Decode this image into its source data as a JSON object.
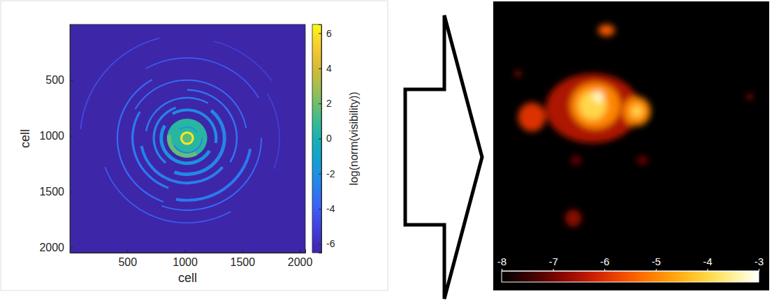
{
  "chart_data": [
    {
      "type": "heatmap",
      "x_label": "cell",
      "y_label": "cell",
      "xlim": [
        0,
        2048
      ],
      "ylim": [
        0,
        2048
      ],
      "xticks": [
        500,
        1000,
        1500,
        2000
      ],
      "yticks": [
        500,
        1000,
        1500,
        2000
      ],
      "center": [
        1020,
        1020
      ],
      "background": -6.5,
      "rings": [
        {
          "r_in": 925,
          "r_out": 935,
          "from": 275,
          "to": 345,
          "value": -4.5
        },
        {
          "r_in": 895,
          "r_out": 903,
          "from": 15,
          "to": 55,
          "value": -4.8
        },
        {
          "r_in": 800,
          "r_out": 808,
          "from": 60,
          "to": 110,
          "value": -4.8
        },
        {
          "r_in": 755,
          "r_out": 765,
          "from": 150,
          "to": 250,
          "value": -4
        },
        {
          "r_in": 715,
          "r_out": 725,
          "from": -30,
          "to": 60,
          "value": -4
        },
        {
          "r_in": 640,
          "r_out": 652,
          "from": 90,
          "to": 200,
          "value": -3.6
        },
        {
          "r_in": 600,
          "r_out": 614,
          "from": 200,
          "to": 330,
          "value": -3.6
        },
        {
          "r_in": 545,
          "r_out": 570,
          "from": 100,
          "to": 190,
          "value": -3
        },
        {
          "r_in": 515,
          "r_out": 527,
          "from": -60,
          "to": 80,
          "value": -3.5
        },
        {
          "r_in": 465,
          "r_out": 485,
          "from": 200,
          "to": 300,
          "value": -3
        },
        {
          "r_in": 425,
          "r_out": 440,
          "from": 0,
          "to": 120,
          "value": -3.2
        },
        {
          "r_in": 390,
          "r_out": 415,
          "from": 130,
          "to": 260,
          "value": -2.8
        },
        {
          "r_in": 355,
          "r_out": 370,
          "from": -80,
          "to": 30,
          "value": -3
        },
        {
          "r_in": 310,
          "r_out": 340,
          "from": 40,
          "to": 200,
          "value": -2.5
        },
        {
          "r_in": 280,
          "r_out": 300,
          "from": 220,
          "to": 340,
          "value": -2.6
        },
        {
          "r_in": 240,
          "r_out": 265,
          "from": -30,
          "to": 100,
          "value": -2.2
        },
        {
          "r_in": 210,
          "r_out": 240,
          "from": 120,
          "to": 300,
          "value": -2
        },
        {
          "r_in": 0,
          "r_out": 175,
          "from": 0,
          "to": 360,
          "value": 0.5
        },
        {
          "r_in": 140,
          "r_out": 175,
          "from": 150,
          "to": 280,
          "value": 1.8
        },
        {
          "r_in": 125,
          "r_out": 135,
          "from": 90,
          "to": 240,
          "value": -3
        },
        {
          "r_in": 95,
          "r_out": 105,
          "from": -40,
          "to": 60,
          "value": -2
        },
        {
          "r_in": 40,
          "r_out": 60,
          "from": 0,
          "to": 360,
          "value": 6
        },
        {
          "r_in": 0,
          "r_out": 40,
          "from": 0,
          "to": 360,
          "value": 1.5
        }
      ],
      "colorbar": {
        "label": "log(norm(visibility))",
        "range": [
          -6.5,
          6.5
        ],
        "ticks": [
          -6,
          -4,
          -2,
          0,
          2,
          4,
          6
        ]
      }
    },
    {
      "type": "image",
      "tick_labels": false,
      "xlim": [
        0,
        1
      ],
      "ylim": [
        0,
        1
      ],
      "background": -8,
      "blobs": [
        {
          "x": 0.36,
          "y": 0.37,
          "rx": 0.17,
          "ry": 0.12,
          "value": -6.5
        },
        {
          "x": 0.37,
          "y": 0.36,
          "rx": 0.09,
          "ry": 0.08,
          "value": -5
        },
        {
          "x": 0.36,
          "y": 0.36,
          "rx": 0.05,
          "ry": 0.05,
          "value": -4
        },
        {
          "x": 0.38,
          "y": 0.33,
          "rx": 0.02,
          "ry": 0.02,
          "value": -3.3
        },
        {
          "x": 0.52,
          "y": 0.38,
          "rx": 0.05,
          "ry": 0.05,
          "value": -5
        },
        {
          "x": 0.52,
          "y": 0.38,
          "rx": 0.02,
          "ry": 0.02,
          "value": -4
        },
        {
          "x": 0.14,
          "y": 0.4,
          "rx": 0.05,
          "ry": 0.05,
          "value": -6
        },
        {
          "x": 0.41,
          "y": 0.1,
          "rx": 0.03,
          "ry": 0.02,
          "value": -5.5
        },
        {
          "x": 0.09,
          "y": 0.25,
          "rx": 0.01,
          "ry": 0.01,
          "value": -6.5
        },
        {
          "x": 0.93,
          "y": 0.33,
          "rx": 0.01,
          "ry": 0.01,
          "value": -6.5
        },
        {
          "x": 0.29,
          "y": 0.75,
          "rx": 0.03,
          "ry": 0.03,
          "value": -6.8
        },
        {
          "x": 0.54,
          "y": 0.55,
          "rx": 0.02,
          "ry": 0.015,
          "value": -7
        },
        {
          "x": 0.3,
          "y": 0.55,
          "rx": 0.02,
          "ry": 0.015,
          "value": -7
        }
      ],
      "colorbar": {
        "range": [
          -8,
          -3
        ],
        "ticks": [
          -8,
          -7,
          -6,
          -5,
          -4,
          -3
        ]
      }
    }
  ]
}
